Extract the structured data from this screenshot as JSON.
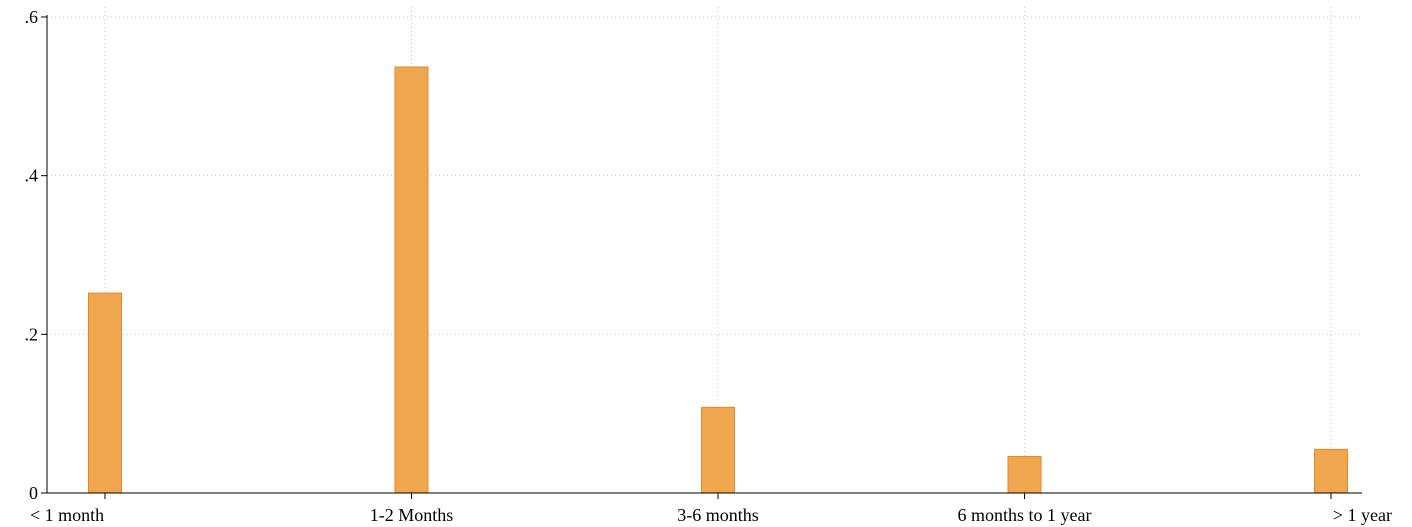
{
  "chart_data": {
    "type": "bar",
    "categories": [
      "< 1 month",
      "1-2 Months",
      "3-6 months",
      "6 months to 1 year",
      "> 1 year"
    ],
    "values": [
      0.252,
      0.537,
      0.108,
      0.046,
      0.055
    ],
    "ylim": [
      0,
      0.6
    ],
    "yticks": [
      0,
      0.2,
      0.4,
      0.6
    ],
    "ytick_labels": [
      "0",
      ".2",
      ".4",
      ".6"
    ],
    "title": "",
    "xlabel": "",
    "ylabel": "",
    "grid": true,
    "colors": {
      "bar": "#f0a54f",
      "bar_edge": "#e08a2c",
      "grid": "#c8c8c8",
      "axis": "#000000"
    }
  }
}
